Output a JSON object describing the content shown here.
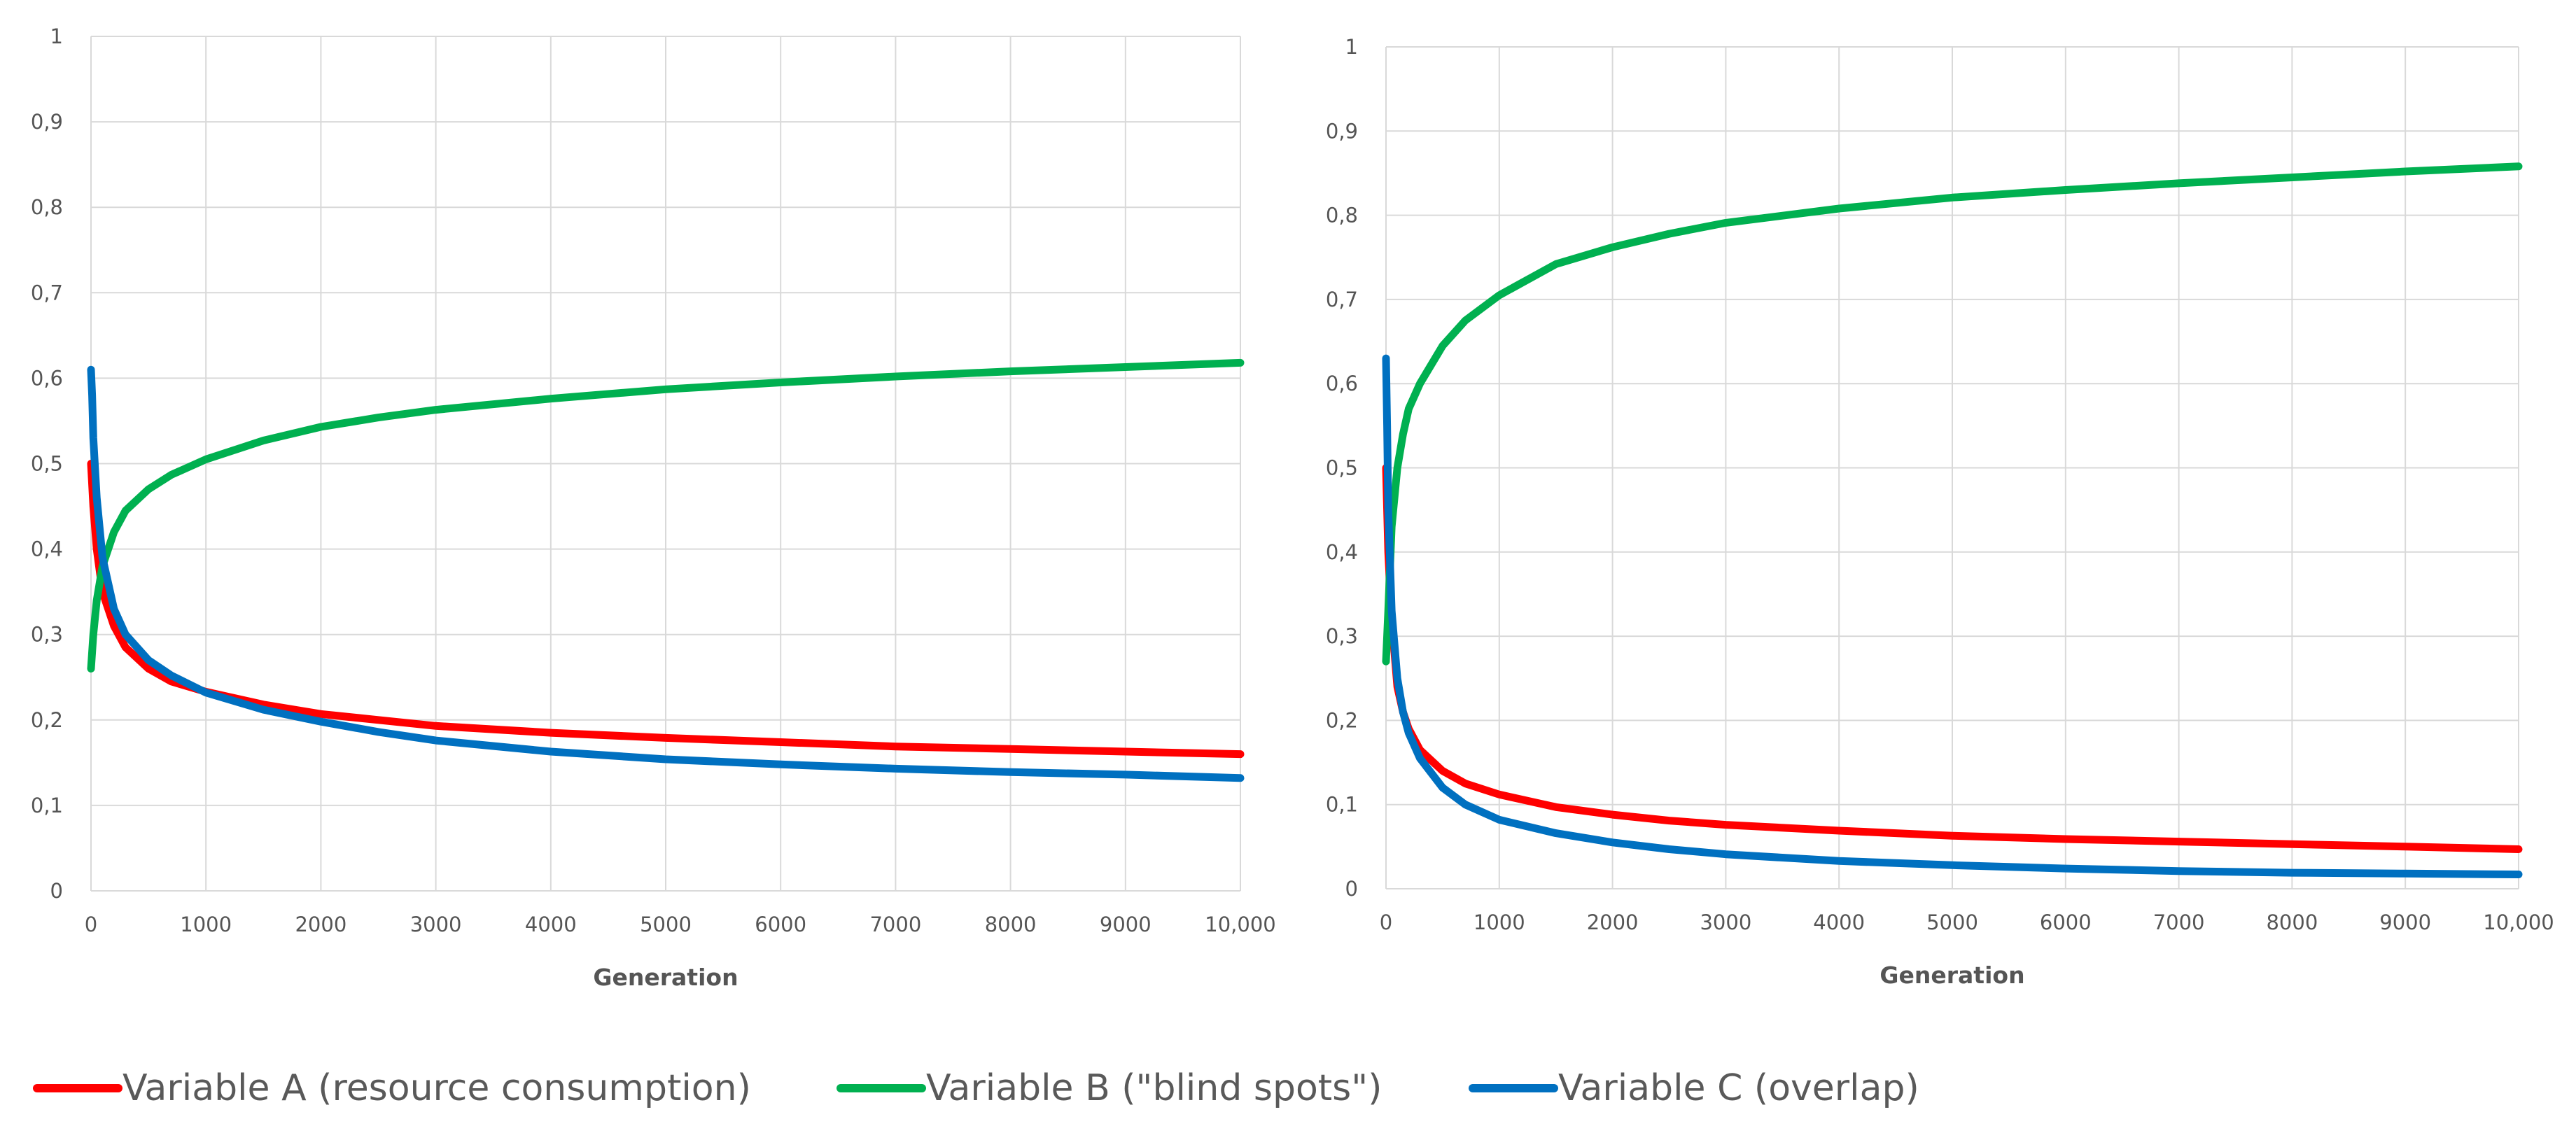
{
  "chart_data": [
    {
      "type": "line",
      "title": "",
      "xlabel": "Generation",
      "ylabel": "",
      "xlim": [
        0,
        10000
      ],
      "ylim": [
        0,
        1
      ],
      "grid": true,
      "xticks": [
        "0",
        "1000",
        "2000",
        "3000",
        "4000",
        "5000",
        "6000",
        "7000",
        "8000",
        "9000",
        "10,000"
      ],
      "yticks": [
        "0",
        "0,1",
        "0,2",
        "0,3",
        "0,4",
        "0,5",
        "0,6",
        "0,7",
        "0,8",
        "0,9",
        "1"
      ],
      "series": [
        {
          "name": "Variable A (resource consumption)",
          "color": "#ff0000",
          "x": [
            0,
            20,
            50,
            100,
            200,
            300,
            500,
            700,
            1000,
            1500,
            2000,
            2500,
            3000,
            4000,
            5000,
            6000,
            7000,
            8000,
            9000,
            10000
          ],
          "y": [
            0.5,
            0.45,
            0.4,
            0.35,
            0.31,
            0.285,
            0.26,
            0.245,
            0.233,
            0.218,
            0.207,
            0.2,
            0.193,
            0.185,
            0.179,
            0.174,
            0.169,
            0.166,
            0.163,
            0.16
          ]
        },
        {
          "name": "Variable B (\"blind spots\")",
          "color": "#00b050",
          "x": [
            0,
            20,
            50,
            100,
            200,
            300,
            500,
            700,
            1000,
            1500,
            2000,
            2500,
            3000,
            4000,
            5000,
            6000,
            7000,
            8000,
            9000,
            10000
          ],
          "y": [
            0.26,
            0.3,
            0.34,
            0.38,
            0.42,
            0.445,
            0.47,
            0.487,
            0.505,
            0.527,
            0.543,
            0.554,
            0.563,
            0.576,
            0.587,
            0.595,
            0.602,
            0.608,
            0.613,
            0.618
          ]
        },
        {
          "name": "Variable C (overlap)",
          "color": "#0070c0",
          "x": [
            0,
            10,
            20,
            50,
            100,
            200,
            300,
            500,
            700,
            1000,
            1500,
            2000,
            2500,
            3000,
            4000,
            5000,
            6000,
            7000,
            8000,
            9000,
            10000
          ],
          "y": [
            0.61,
            0.58,
            0.53,
            0.46,
            0.39,
            0.33,
            0.3,
            0.27,
            0.252,
            0.232,
            0.212,
            0.198,
            0.186,
            0.176,
            0.163,
            0.154,
            0.148,
            0.143,
            0.139,
            0.136,
            0.132
          ]
        }
      ]
    },
    {
      "type": "line",
      "title": "",
      "xlabel": "Generation",
      "ylabel": "",
      "xlim": [
        0,
        10000
      ],
      "ylim": [
        0,
        1
      ],
      "grid": true,
      "xticks": [
        "0",
        "1000",
        "2000",
        "3000",
        "4000",
        "5000",
        "6000",
        "7000",
        "8000",
        "9000",
        "10,000"
      ],
      "yticks": [
        "0",
        "0,1",
        "0,2",
        "0,3",
        "0,4",
        "0,5",
        "0,6",
        "0,7",
        "0,8",
        "0,9",
        "1"
      ],
      "series": [
        {
          "name": "Variable A (resource consumption)",
          "color": "#ff0000",
          "x": [
            0,
            20,
            50,
            100,
            150,
            200,
            300,
            500,
            700,
            1000,
            1500,
            2000,
            2500,
            3000,
            4000,
            5000,
            6000,
            7000,
            8000,
            9000,
            10000
          ],
          "y": [
            0.5,
            0.4,
            0.32,
            0.24,
            0.21,
            0.19,
            0.165,
            0.14,
            0.125,
            0.112,
            0.097,
            0.088,
            0.081,
            0.076,
            0.069,
            0.063,
            0.059,
            0.056,
            0.053,
            0.05,
            0.047
          ]
        },
        {
          "name": "Variable B (\"blind spots\")",
          "color": "#00b050",
          "x": [
            0,
            20,
            50,
            100,
            150,
            200,
            300,
            500,
            700,
            1000,
            1500,
            2000,
            2500,
            3000,
            4000,
            5000,
            6000,
            7000,
            8000,
            9000,
            10000
          ],
          "y": [
            0.27,
            0.33,
            0.43,
            0.5,
            0.54,
            0.57,
            0.6,
            0.645,
            0.675,
            0.705,
            0.742,
            0.762,
            0.778,
            0.791,
            0.808,
            0.821,
            0.83,
            0.838,
            0.845,
            0.852,
            0.858
          ]
        },
        {
          "name": "Variable C (overlap)",
          "color": "#0070c0",
          "x": [
            0,
            10,
            20,
            50,
            100,
            150,
            200,
            300,
            500,
            700,
            1000,
            1500,
            2000,
            2500,
            3000,
            4000,
            5000,
            6000,
            7000,
            8000,
            9000,
            10000
          ],
          "y": [
            0.63,
            0.55,
            0.45,
            0.33,
            0.25,
            0.21,
            0.185,
            0.155,
            0.12,
            0.1,
            0.082,
            0.066,
            0.055,
            0.047,
            0.041,
            0.033,
            0.028,
            0.024,
            0.021,
            0.019,
            0.018,
            0.017
          ]
        }
      ]
    }
  ],
  "legend": [
    {
      "label": "Variable A (resource consumption)",
      "color": "#ff0000"
    },
    {
      "label": "Variable B (\"blind spots\")",
      "color": "#00b050"
    },
    {
      "label": "Variable C (overlap)",
      "color": "#0070c0"
    }
  ]
}
